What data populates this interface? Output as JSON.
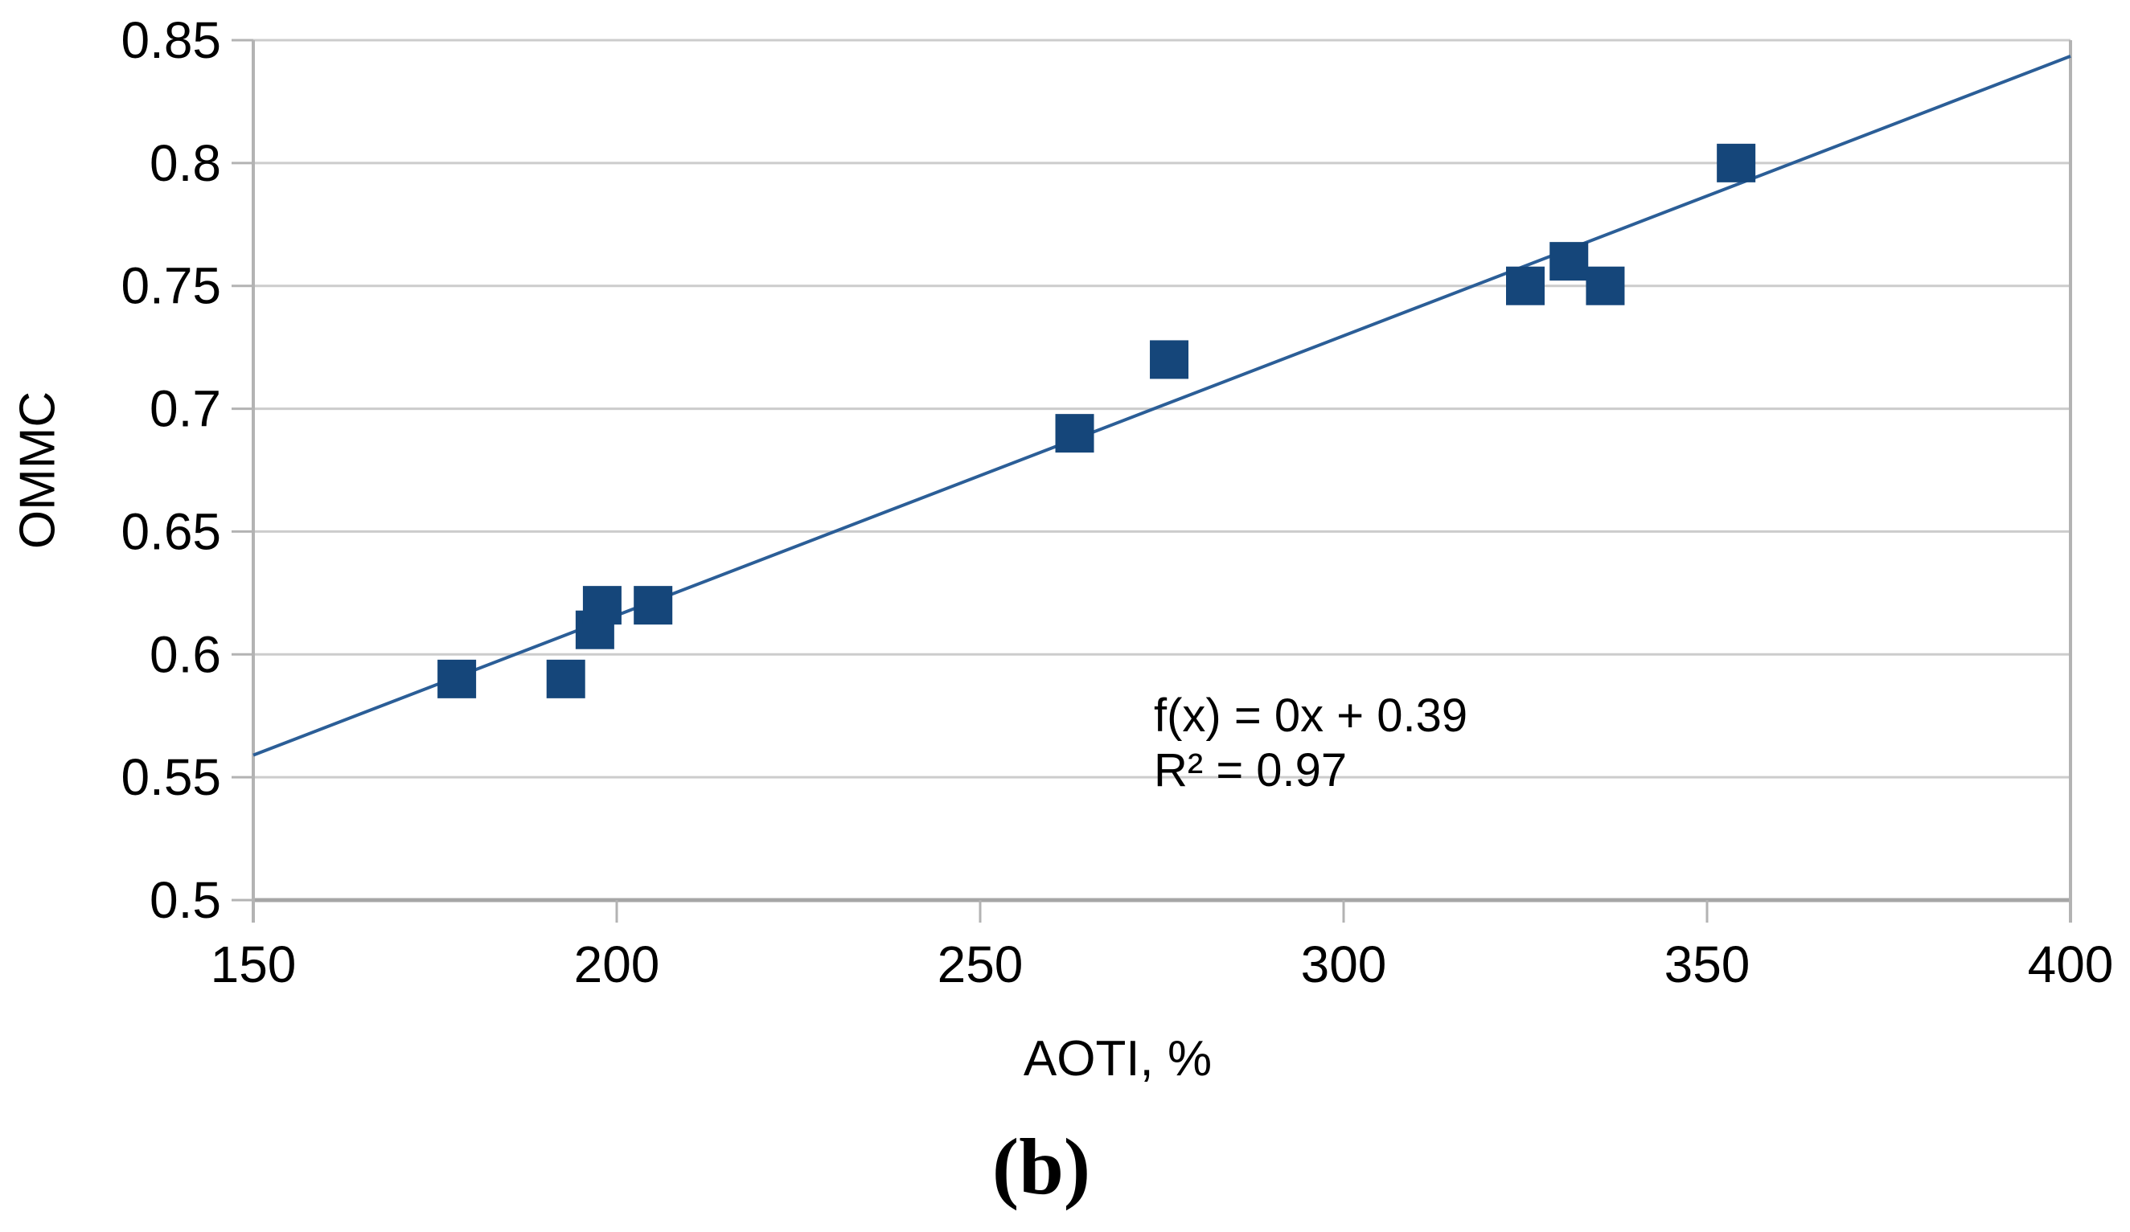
{
  "figure": {
    "caption": "(b)"
  },
  "chart_data": {
    "type": "scatter",
    "title": "",
    "xlabel": "AOTI, %",
    "ylabel": "OMMC",
    "xlim": [
      150,
      400
    ],
    "ylim": [
      0.5,
      0.85
    ],
    "x_ticks": [
      150,
      200,
      250,
      300,
      350,
      400
    ],
    "x_tick_labels": [
      "150",
      "200",
      "250",
      "300",
      "350",
      "400"
    ],
    "y_ticks": [
      0.5,
      0.55,
      0.6,
      0.65,
      0.7,
      0.75,
      0.8,
      0.85
    ],
    "y_tick_labels": [
      "0.5",
      "0.55",
      "0.6",
      "0.65",
      "0.7",
      "0.75",
      "0.8",
      "0.85"
    ],
    "grid": "horizontal",
    "legend": "none",
    "points": [
      {
        "x": 178,
        "y": 0.59
      },
      {
        "x": 193,
        "y": 0.59
      },
      {
        "x": 197,
        "y": 0.61
      },
      {
        "x": 198,
        "y": 0.62
      },
      {
        "x": 205,
        "y": 0.62
      },
      {
        "x": 263,
        "y": 0.69
      },
      {
        "x": 276,
        "y": 0.72
      },
      {
        "x": 325,
        "y": 0.75
      },
      {
        "x": 331,
        "y": 0.76
      },
      {
        "x": 336,
        "y": 0.75
      },
      {
        "x": 354,
        "y": 0.8
      }
    ],
    "trendline": {
      "x1": 150,
      "y1": 0.559,
      "x2": 400,
      "y2": 0.8435,
      "equation_label": "f(x) = 0x + 0.39",
      "r_squared_label": "R² = 0.97"
    },
    "colors": {
      "marker": "#15467a",
      "trendline": "#2b5e97",
      "gridline": "#cccccc",
      "axis": "#b3b3b3",
      "baseline_axis": "#a6a6a6"
    }
  }
}
